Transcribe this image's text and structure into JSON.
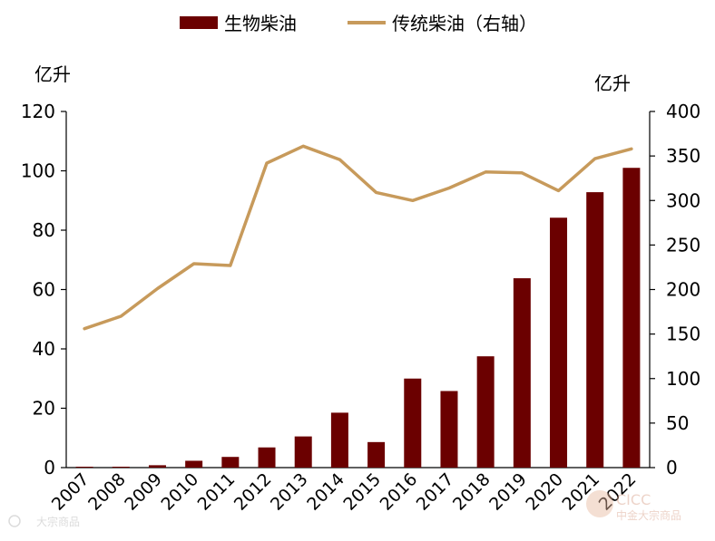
{
  "chart_data": {
    "type": "bar",
    "categories": [
      "2007",
      "2008",
      "2009",
      "2010",
      "2011",
      "2012",
      "2013",
      "2014",
      "2015",
      "2016",
      "2017",
      "2018",
      "2019",
      "2020",
      "2021",
      "2022"
    ],
    "series": [
      {
        "name": "生物柴油",
        "type": "bar",
        "axis": "left",
        "color": "#6b0000",
        "values": [
          0.3,
          0.3,
          0.8,
          2.3,
          3.6,
          6.8,
          10.5,
          18.5,
          8.6,
          30,
          25.8,
          37.5,
          63.8,
          84.2,
          92.8,
          101
        ]
      },
      {
        "name": "传统柴油（右轴）",
        "type": "line",
        "axis": "right",
        "color": "#c79a5b",
        "values": [
          156,
          170,
          201,
          229,
          227,
          342,
          361,
          346,
          309,
          300,
          314,
          332,
          331,
          311,
          347,
          358
        ]
      }
    ],
    "y_left": {
      "unit": "亿升",
      "min": 0,
      "max": 120,
      "ticks": [
        0,
        20,
        40,
        60,
        80,
        100,
        120
      ]
    },
    "y_right": {
      "unit": "亿升",
      "min": 0,
      "max": 400,
      "ticks": [
        0,
        50,
        100,
        150,
        200,
        250,
        300,
        350,
        400
      ]
    },
    "legend_position": "top-center",
    "grid": false
  },
  "watermarks": [
    "CICC",
    "中金大宗商品",
    "大宗商品"
  ]
}
